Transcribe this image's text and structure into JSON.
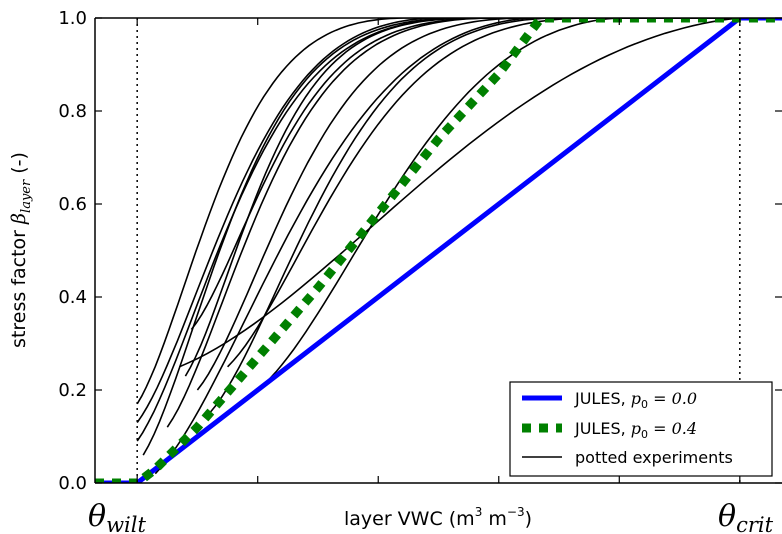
{
  "chart_data": {
    "type": "line",
    "xlabel_text": "layer VWC (m",
    "xlabel_sup1": "3",
    "xlabel_mid": " m",
    "xlabel_sup2": "−3",
    "xlabel_end": ")",
    "ylabel_text": "stress factor ",
    "ylabel_symbol": "β",
    "ylabel_sub": "layer",
    "ylabel_unit": "  (-)",
    "x_tick_left": {
      "symbol": "θ",
      "sub": "wilt"
    },
    "x_tick_right": {
      "symbol": "θ",
      "sub": "crit"
    },
    "xlim": [
      -0.07,
      1.07
    ],
    "ylim": [
      0.0,
      1.0
    ],
    "x_minor_ticks": [
      0.2,
      0.4,
      0.6,
      0.8
    ],
    "y_ticks": [
      0.0,
      0.2,
      0.4,
      0.6,
      0.8,
      1.0
    ],
    "y_tick_labels": [
      "0.0",
      "0.2",
      "0.4",
      "0.6",
      "0.8",
      "1.0"
    ],
    "vlines": [
      0.0,
      1.0
    ],
    "legend": {
      "placement": "lower-right",
      "entries": [
        {
          "label": "JULES, ",
          "math": "p",
          "sub": "0",
          "eq": " = 0.0",
          "color": "#0000ff",
          "style": "solid"
        },
        {
          "label": "JULES, ",
          "math": "p",
          "sub": "0",
          "eq": " = 0.4",
          "color": "#008000",
          "style": "dashed"
        },
        {
          "label": "potted experiments",
          "color": "#000000",
          "style": "thin"
        }
      ]
    },
    "series": [
      {
        "legend": 0,
        "color": "#0000ff",
        "style": "solid",
        "width": 5,
        "points": [
          [
            -0.07,
            0.0
          ],
          [
            0.0,
            0.0
          ],
          [
            1.0,
            1.0
          ],
          [
            1.07,
            1.0
          ]
        ]
      },
      {
        "legend": 1,
        "color": "#008000",
        "style": "dashed",
        "width": 9,
        "points": [
          [
            -0.07,
            0.0
          ],
          [
            0.0,
            0.0
          ],
          [
            0.03,
            0.03
          ],
          [
            0.1,
            0.12
          ],
          [
            0.2,
            0.27
          ],
          [
            0.3,
            0.42
          ],
          [
            0.4,
            0.58
          ],
          [
            0.5,
            0.74
          ],
          [
            0.6,
            0.88
          ],
          [
            0.67,
            1.0
          ],
          [
            1.07,
            1.0
          ]
        ]
      },
      {
        "legend": 2,
        "color": "#000000",
        "style": "thin",
        "width": 1.6,
        "curves": [
          {
            "x0": 0.0,
            "y0": 0.17,
            "x1": 0.45,
            "k": 2.2,
            "s": 1.0
          },
          {
            "x0": 0.0,
            "y0": 0.13,
            "x1": 0.5,
            "k": 2.0,
            "s": 1.0
          },
          {
            "x0": 0.0,
            "y0": 0.09,
            "x1": 0.55,
            "k": 2.2,
            "s": 1.0
          },
          {
            "x0": 0.01,
            "y0": 0.06,
            "x1": 0.55,
            "k": 2.4,
            "s": 1.0
          },
          {
            "x0": 0.05,
            "y0": 0.12,
            "x1": 0.6,
            "k": 2.3,
            "s": 1.0
          },
          {
            "x0": 0.08,
            "y0": 0.23,
            "x1": 0.58,
            "k": 2.6,
            "s": 1.0
          },
          {
            "x0": 0.09,
            "y0": 0.33,
            "x1": 0.6,
            "k": 2.4,
            "s": 1.0
          },
          {
            "x0": 0.1,
            "y0": 0.2,
            "x1": 0.65,
            "k": 2.2,
            "s": 1.0
          },
          {
            "x0": 0.12,
            "y0": 0.15,
            "x1": 0.7,
            "k": 2.0,
            "s": 1.0
          },
          {
            "x0": 0.15,
            "y0": 0.25,
            "x1": 0.75,
            "k": 2.0,
            "s": 1.0
          },
          {
            "x0": 0.03,
            "y0": 0.02,
            "x1": 0.66,
            "k": 1.7,
            "s": 1.0
          },
          {
            "x0": 0.07,
            "y0": 0.25,
            "x1": 1.0,
            "k": 1.3,
            "s": 1.0
          },
          {
            "x0": 0.2,
            "y0": 0.2,
            "x1": 0.8,
            "k": 1.6,
            "s": 1.0
          }
        ]
      }
    ]
  }
}
